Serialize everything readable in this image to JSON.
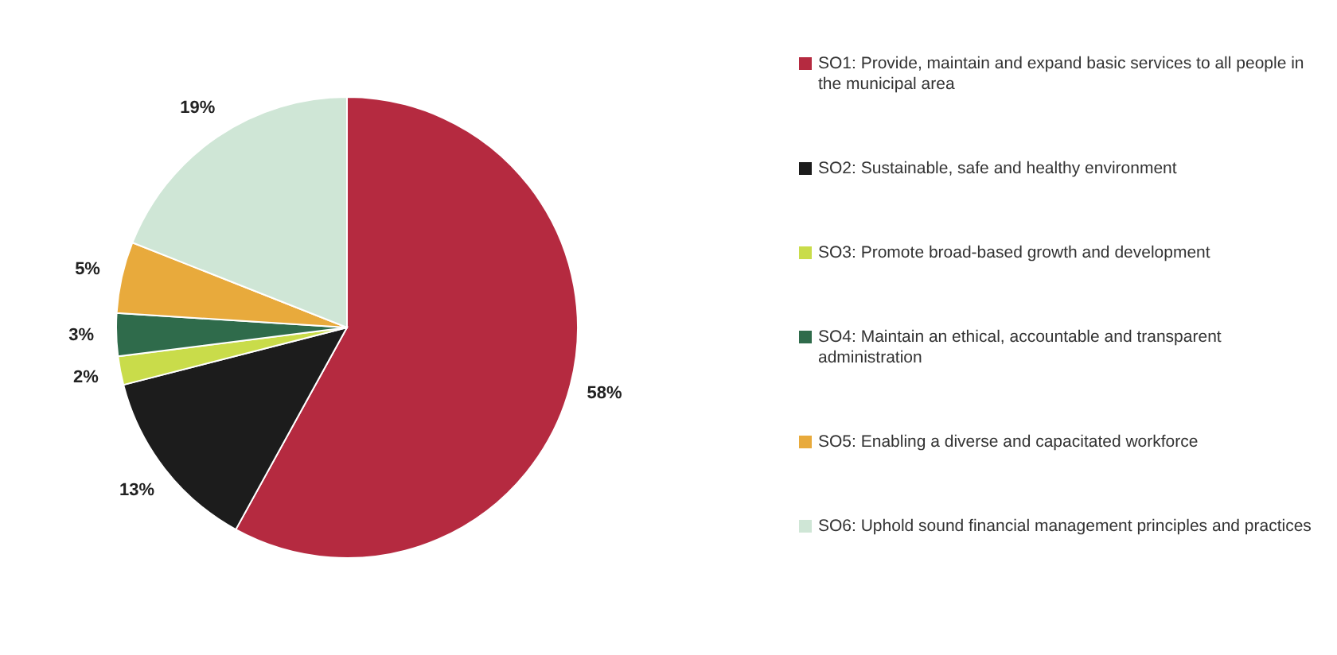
{
  "chart_data": {
    "type": "pie",
    "categories": [
      "SO1: Provide, maintain and expand basic services to all people in the municipal area",
      "SO2: Sustainable, safe and healthy environment",
      "SO3: Promote broad-based growth and development",
      "SO4: Maintain an ethical, accountable and transparent administration",
      "SO5: Enabling a diverse and capacitated workforce",
      "SO6: Uphold sound financial management principles and practices"
    ],
    "values": [
      58,
      13,
      2,
      3,
      5,
      19
    ],
    "value_labels": [
      "58%",
      "13%",
      "2%",
      "3%",
      "5%",
      "19%"
    ],
    "colors": [
      "#b52a40",
      "#1c1c1c",
      "#c9dc4a",
      "#2f6b4b",
      "#e8aa3c",
      "#cfe6d6"
    ],
    "legend": "right"
  }
}
